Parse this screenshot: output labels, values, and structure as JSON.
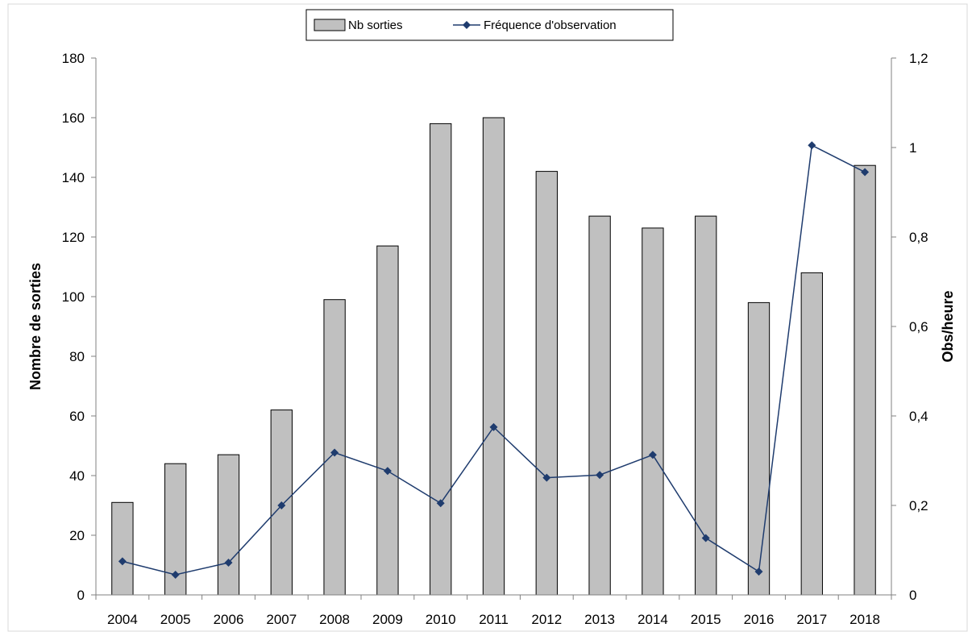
{
  "chart_data": {
    "type": "bar",
    "categories": [
      "2004",
      "2005",
      "2006",
      "2007",
      "2008",
      "2009",
      "2010",
      "2011",
      "2012",
      "2013",
      "2014",
      "2015",
      "2016",
      "2017",
      "2018"
    ],
    "series": [
      {
        "name": "Nb sorties",
        "type": "bar",
        "axis": "left",
        "color": "#c0c0c0",
        "values": [
          31,
          44,
          47,
          62,
          99,
          117,
          158,
          160,
          142,
          127,
          123,
          127,
          98,
          108,
          144
        ]
      },
      {
        "name": "Fréquence d'observation",
        "type": "line",
        "axis": "right",
        "color": "#1f3c6e",
        "marker": "diamond",
        "values": [
          0.075,
          0.045,
          0.072,
          0.2,
          0.318,
          0.277,
          0.205,
          0.375,
          0.262,
          0.268,
          0.313,
          0.127,
          0.052,
          1.005,
          0.945
        ]
      }
    ],
    "ylabel": "Nombre de sorties",
    "ylabel_right": "Obs/heure",
    "ylim": [
      0,
      180
    ],
    "ylim_right": [
      0,
      1.2
    ],
    "yticks": [
      "0",
      "20",
      "40",
      "60",
      "80",
      "100",
      "120",
      "140",
      "160",
      "180"
    ],
    "yticks_right": [
      "0",
      "0,2",
      "0,4",
      "0,6",
      "0,8",
      "1",
      "1,2"
    ],
    "grid": false,
    "legend_position": "top-center"
  }
}
